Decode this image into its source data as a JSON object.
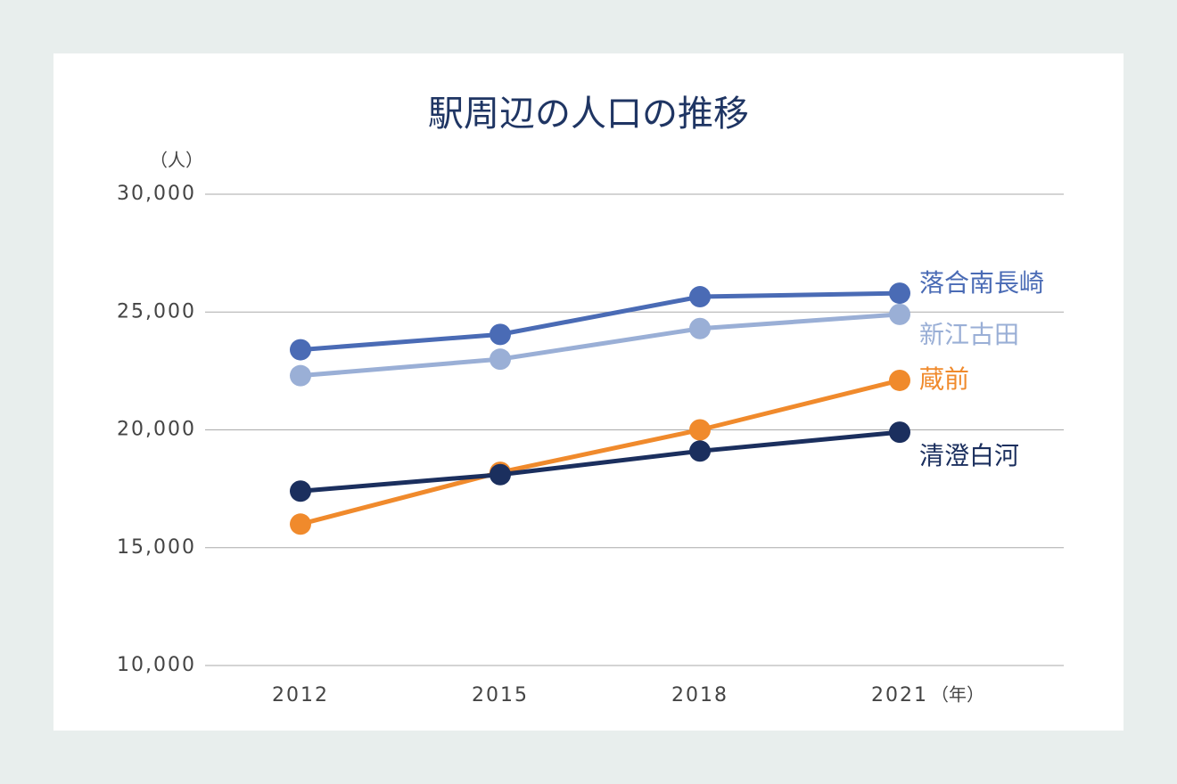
{
  "chart_data": {
    "type": "line",
    "title": "駅周辺の人口の推移",
    "y_unit": "（人）",
    "x_unit": "（年）",
    "categories": [
      "2012",
      "2015",
      "2018",
      "2021"
    ],
    "series": [
      {
        "name": "落合南長崎",
        "color": "#4a6bb5",
        "values": [
          23400,
          24050,
          25650,
          25800
        ]
      },
      {
        "name": "新江古田",
        "color": "#9aafd6",
        "values": [
          22300,
          23000,
          24300,
          24900
        ]
      },
      {
        "name": "蔵前",
        "color": "#f08a2c",
        "values": [
          16000,
          18200,
          20000,
          22100
        ]
      },
      {
        "name": "清澄白河",
        "color": "#1b2f5e",
        "values": [
          17400,
          18100,
          19100,
          19900
        ]
      }
    ],
    "ylim": [
      10000,
      30000
    ],
    "yticks": [
      {
        "value": 10000,
        "label": "10,000"
      },
      {
        "value": 15000,
        "label": "15,000"
      },
      {
        "value": 20000,
        "label": "20,000"
      },
      {
        "value": 25000,
        "label": "25,000"
      },
      {
        "value": 30000,
        "label": "30,000"
      }
    ],
    "grid": true
  }
}
